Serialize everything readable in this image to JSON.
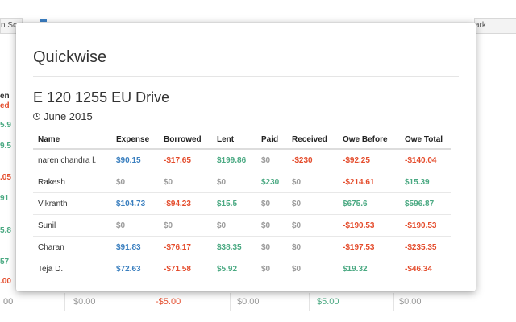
{
  "background": {
    "tabs": [
      "n Sc",
      "ark"
    ],
    "left_fragments": [
      {
        "text": "en",
        "color": "#333333"
      },
      {
        "text": "ed",
        "color": "#e44c2c"
      },
      {
        "text": "5.9",
        "color": "#4aa982"
      },
      {
        "text": "9.5",
        "color": "#4aa982"
      },
      {
        "text": ".05",
        "color": "#e44c2c"
      },
      {
        "text": "91",
        "color": "#4aa982"
      },
      {
        "text": "5.8",
        "color": "#4aa982"
      },
      {
        "text": "57",
        "color": "#4aa982"
      },
      {
        "text": ".00",
        "color": "#e44c2c"
      }
    ],
    "bottom_row": [
      "00",
      "$0.00",
      "-$5.00",
      "$0.00",
      "$5.00",
      "$0.00"
    ]
  },
  "modal": {
    "app_title": "Quickwise",
    "report_title": "E 120 1255 EU Drive",
    "date": "June 2015",
    "date_icon": "clock-icon"
  },
  "colors": {
    "positive": "#4aa982",
    "negative": "#e44c2c",
    "expense": "#3a7fbf",
    "zero": "#9a9a9a"
  },
  "table": {
    "headers": [
      "Name",
      "Expense",
      "Borrowed",
      "Lent",
      "Paid",
      "Received",
      "Owe Before",
      "Owe Total"
    ],
    "rows": [
      [
        "naren chandra l.",
        "$90.15",
        "-$17.65",
        "$199.86",
        "$0",
        "-$230",
        "-$92.25",
        "-$140.04"
      ],
      [
        "Rakesh",
        "$0",
        "$0",
        "$0",
        "$230",
        "$0",
        "-$214.61",
        "$15.39"
      ],
      [
        "Vikranth",
        "$104.73",
        "-$94.23",
        "$15.5",
        "$0",
        "$0",
        "$675.6",
        "$596.87"
      ],
      [
        "Sunil",
        "$0",
        "$0",
        "$0",
        "$0",
        "$0",
        "-$190.53",
        "-$190.53"
      ],
      [
        "Charan",
        "$91.83",
        "-$76.17",
        "$38.35",
        "$0",
        "$0",
        "-$197.53",
        "-$235.35"
      ],
      [
        "Teja D.",
        "$72.63",
        "-$71.58",
        "$5.92",
        "$0",
        "$0",
        "$19.32",
        "-$46.34"
      ]
    ]
  }
}
